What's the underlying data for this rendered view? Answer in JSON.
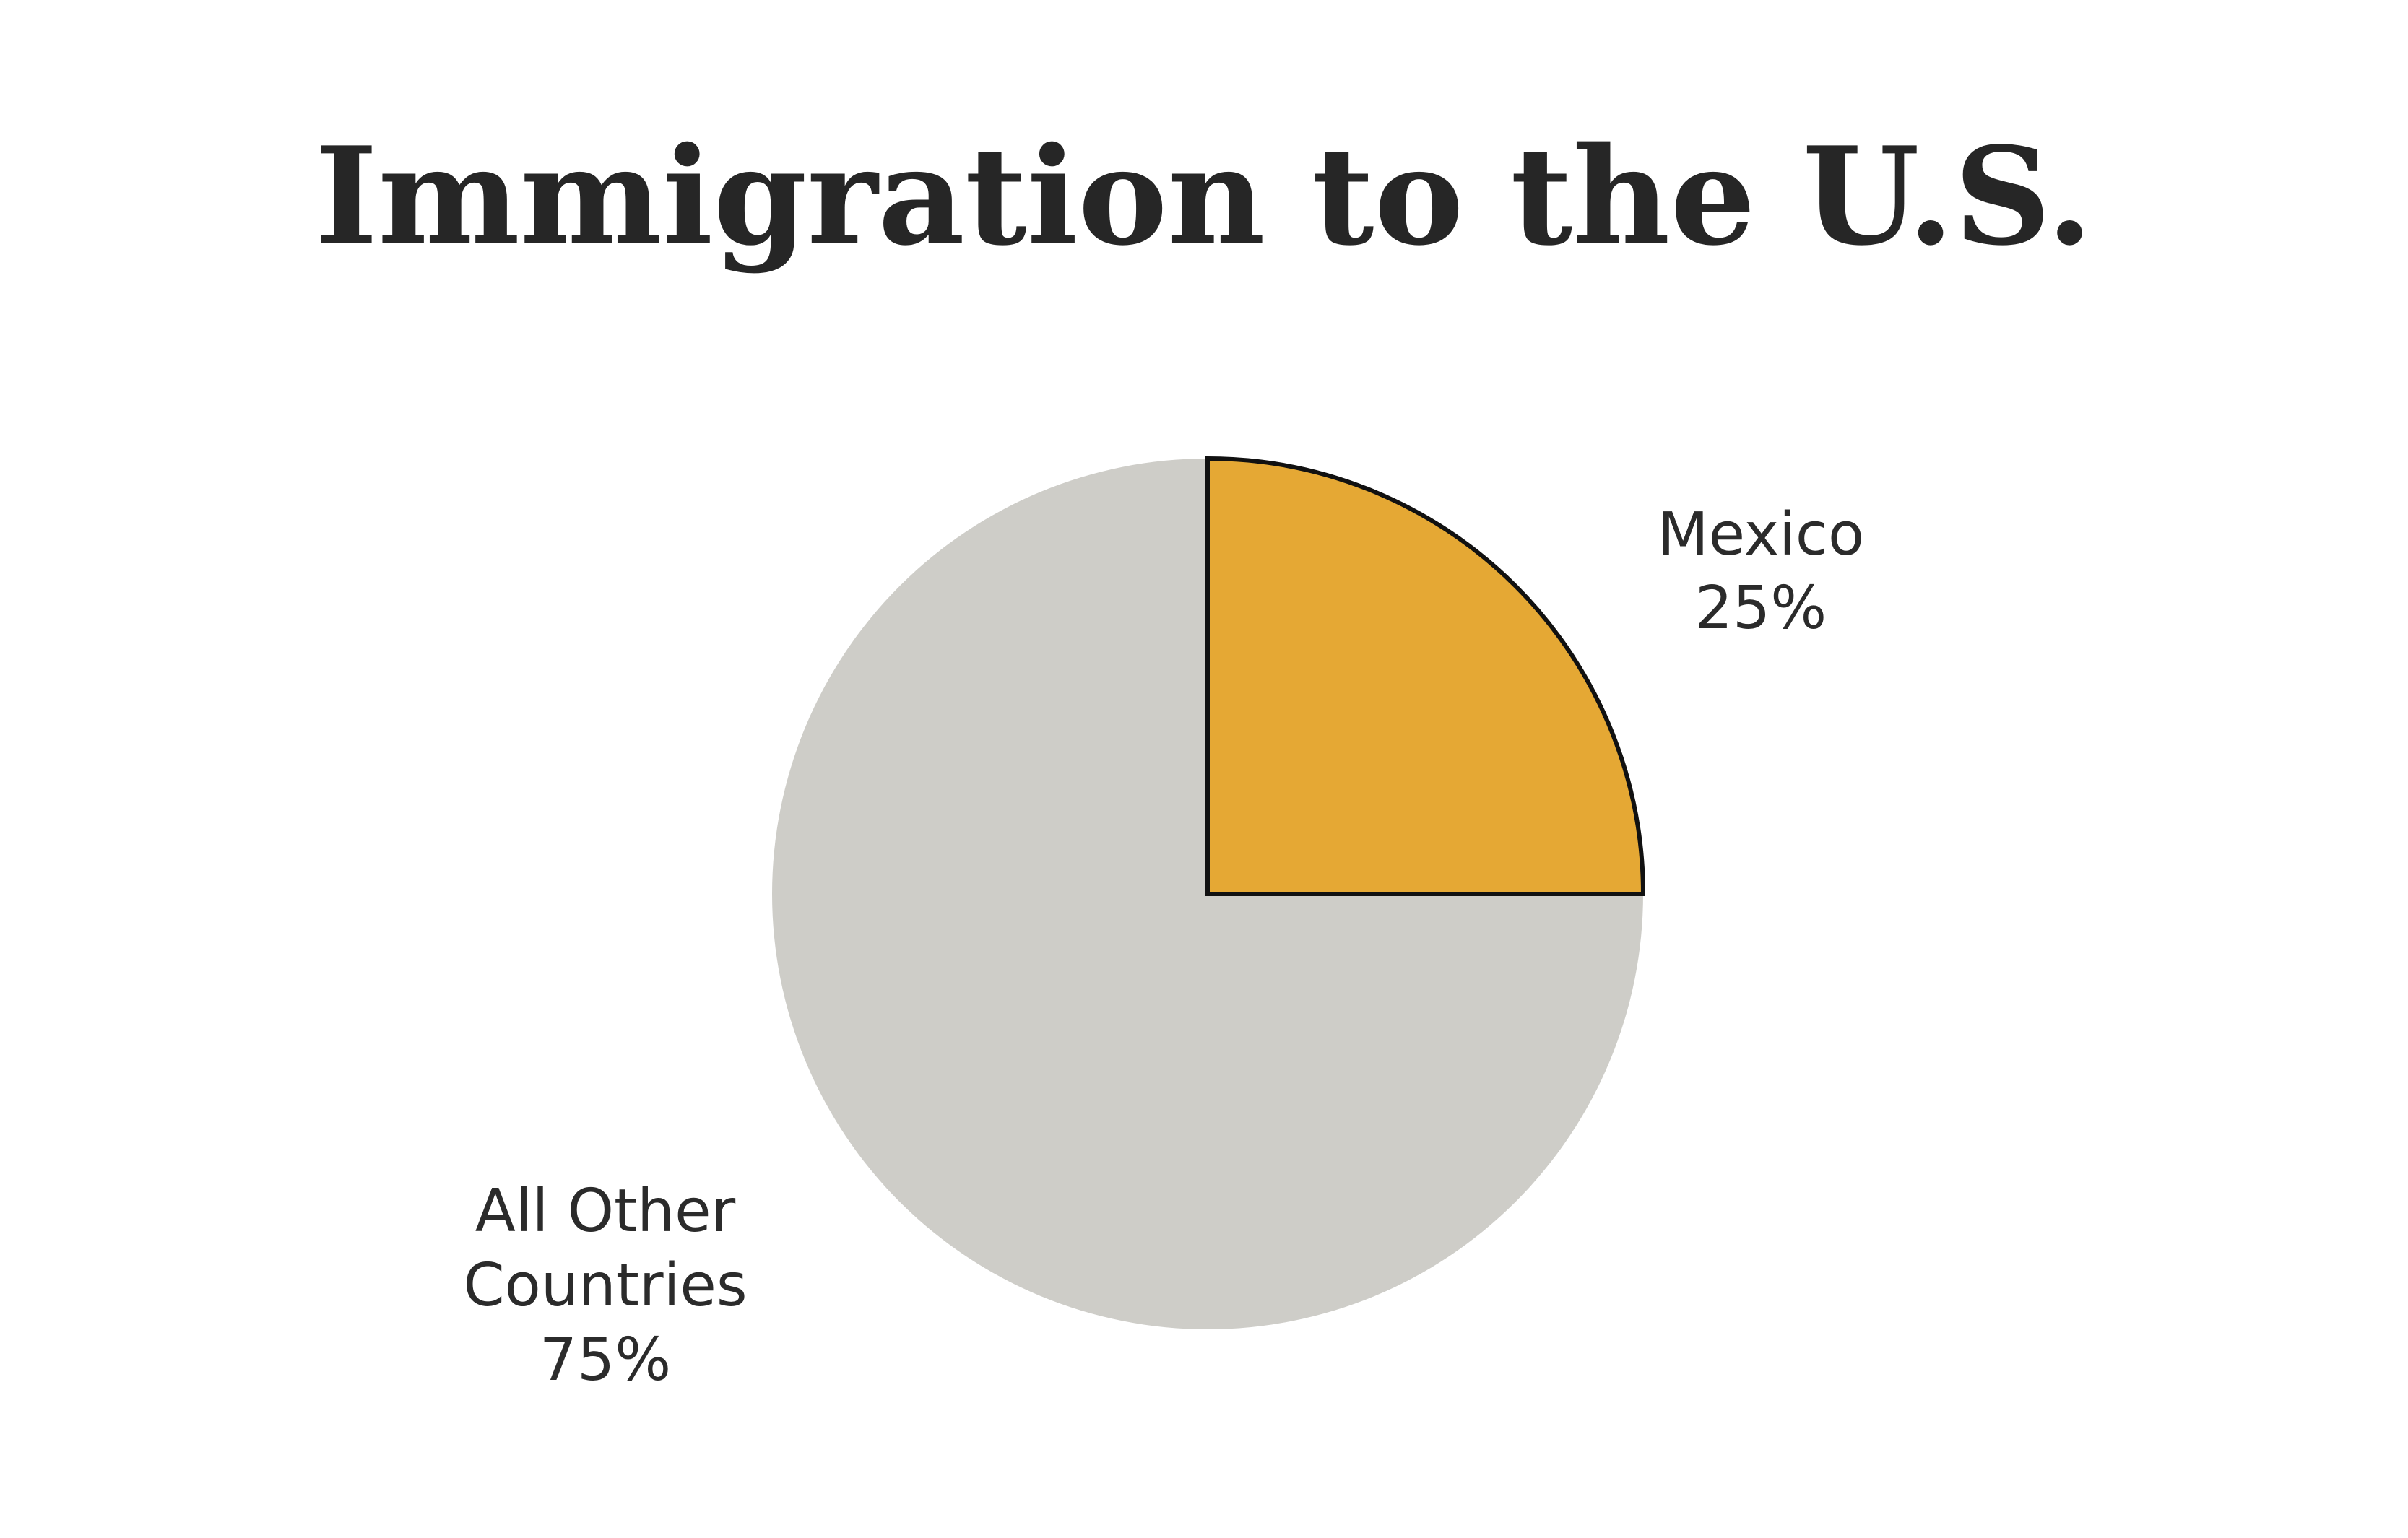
{
  "chart_data": {
    "type": "pie",
    "title": "Immigration to the U.S.",
    "slices": [
      {
        "label": "Mexico",
        "value": 25,
        "value_label": "25%",
        "color": "#E5A834",
        "outlined": true
      },
      {
        "label_lines": [
          "All Other",
          "Countries"
        ],
        "value": 75,
        "value_label": "75%",
        "color": "#CECDC8",
        "outlined": false
      }
    ],
    "start_angle": "12 o'clock",
    "direction": "clockwise",
    "legend": "none (labels placed beside slices)"
  }
}
